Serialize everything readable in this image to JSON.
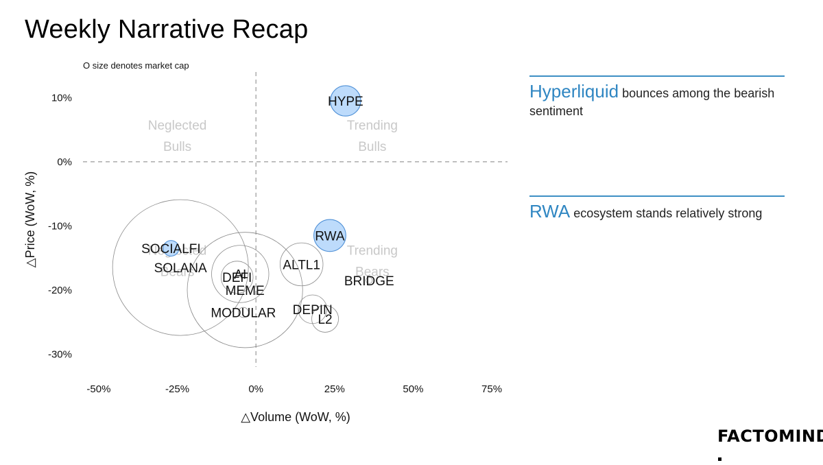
{
  "title": "Weekly Narrative Recap",
  "size_note": "O size denotes market cap",
  "annotations": [
    {
      "highlight": "Hyperliquid",
      "rest": " bounces among the bearish sentiment"
    },
    {
      "highlight": "RWA",
      "rest": " ecosystem stands relatively strong"
    }
  ],
  "logo": "FACTOMIND",
  "colors": {
    "accent": "#3d8fc4",
    "bubble_fill": "#b9d9fb",
    "bubble_stroke": "#4d8fd6",
    "quadrant_text": "#c8c8c8"
  },
  "chart_data": {
    "type": "scatter",
    "xlabel": "△Volume (WoW, %)",
    "ylabel": "△Price (WoW, %)",
    "xlim": [
      -55,
      80
    ],
    "ylim": [
      -32,
      14
    ],
    "x_ticks": [
      "-50%",
      "-25%",
      "0%",
      "25%",
      "50%",
      "75%"
    ],
    "x_tick_values": [
      -50,
      -25,
      0,
      25,
      50,
      75
    ],
    "y_ticks": [
      "10%",
      "0%",
      "-10%",
      "-20%",
      "-30%"
    ],
    "y_tick_values": [
      10,
      0,
      -10,
      -20,
      -30
    ],
    "reference_lines": {
      "x": 0,
      "y": 0
    },
    "quadrant_labels": [
      {
        "text": [
          "Neglected",
          "Bulls"
        ],
        "x": -25,
        "y": 5
      },
      {
        "text": [
          "Trending",
          "Bulls"
        ],
        "x": 37,
        "y": 5
      },
      {
        "text": [
          "Neglected",
          "Bears"
        ],
        "x": -25,
        "y": -14.5
      },
      {
        "text": [
          "Trending",
          "Bears"
        ],
        "x": 37,
        "y": -14.5
      }
    ],
    "points": [
      {
        "label": "HYPE",
        "x": 28.5,
        "y": 9.5,
        "market_cap": 0.45,
        "highlight": true
      },
      {
        "label": "RWA",
        "x": 23.5,
        "y": -11.5,
        "market_cap": 0.5,
        "highlight": true
      },
      {
        "label": "SOCIALFI",
        "x": -27,
        "y": -13.5,
        "market_cap": 0.12,
        "highlight": true
      },
      {
        "label": "SOLANA",
        "x": -24,
        "y": -16.5,
        "market_cap": 9.0,
        "highlight": false
      },
      {
        "label": "AI",
        "x": -5,
        "y": -17.5,
        "market_cap": 1.6,
        "highlight": false
      },
      {
        "label": "DEFI",
        "x": -6,
        "y": -18,
        "market_cap": 0.5,
        "highlight": false
      },
      {
        "label": "MEME",
        "x": -3.5,
        "y": -20,
        "market_cap": 6.5,
        "highlight": false
      },
      {
        "label": "MODULAR",
        "x": -4,
        "y": -23.5,
        "market_cap": 0.05,
        "highlight": false
      },
      {
        "label": "ALTL1",
        "x": 14.5,
        "y": -16,
        "market_cap": 0.9,
        "highlight": false
      },
      {
        "label": "BRIDGE",
        "x": 36,
        "y": -18.5,
        "market_cap": 0.02,
        "highlight": false
      },
      {
        "label": "DEPIN",
        "x": 18,
        "y": -23,
        "market_cap": 0.4,
        "highlight": false
      },
      {
        "label": "L2",
        "x": 22,
        "y": -24.5,
        "market_cap": 0.35,
        "highlight": false
      }
    ]
  }
}
